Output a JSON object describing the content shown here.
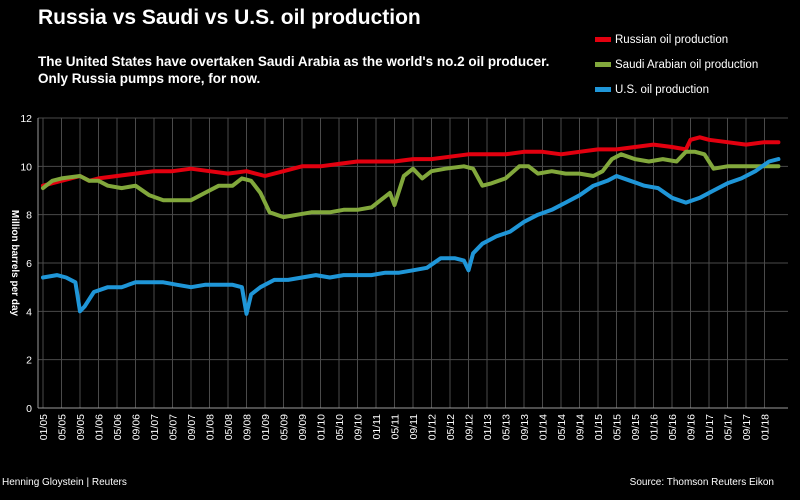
{
  "chart_data": {
    "type": "line",
    "title": "Russia vs Saudi vs U.S. oil production",
    "subtitle": "The United States have overtaken Saudi Arabia as the world's no.2 oil producer. Only Russia pumps more, for now.",
    "ylabel": "Million barrels per day",
    "ylim": [
      0,
      12
    ],
    "yticks": [
      0,
      2,
      4,
      6,
      8,
      10,
      12
    ],
    "xlim": [
      "2005-01",
      "2018-04"
    ],
    "xticks": [
      "01/05",
      "05/05",
      "09/05",
      "01/06",
      "05/06",
      "09/06",
      "01/07",
      "05/07",
      "09/07",
      "01/08",
      "05/08",
      "09/08",
      "01/09",
      "05/09",
      "09/09",
      "01/10",
      "05/10",
      "09/10",
      "01/11",
      "05/11",
      "09/11",
      "01/12",
      "05/12",
      "09/12",
      "01/13",
      "05/13",
      "09/13",
      "01/14",
      "05/14",
      "09/14",
      "01/15",
      "05/15",
      "09/15",
      "01/16",
      "05/16",
      "09/16",
      "01/17",
      "05/17",
      "09/17",
      "01/18"
    ],
    "grid": true,
    "legend": "top-right",
    "series": [
      {
        "name": "Russian oil production",
        "color": "#e3000f",
        "points": [
          [
            "2005-01",
            9.2
          ],
          [
            "2005-05",
            9.4
          ],
          [
            "2005-07",
            9.5
          ],
          [
            "2005-09",
            9.6
          ],
          [
            "2005-11",
            9.4
          ],
          [
            "2006-01",
            9.5
          ],
          [
            "2006-05",
            9.6
          ],
          [
            "2006-09",
            9.7
          ],
          [
            "2007-01",
            9.8
          ],
          [
            "2007-05",
            9.8
          ],
          [
            "2007-09",
            9.9
          ],
          [
            "2008-01",
            9.8
          ],
          [
            "2008-05",
            9.7
          ],
          [
            "2008-09",
            9.8
          ],
          [
            "2009-01",
            9.6
          ],
          [
            "2009-05",
            9.8
          ],
          [
            "2009-09",
            10.0
          ],
          [
            "2010-01",
            10.0
          ],
          [
            "2010-05",
            10.1
          ],
          [
            "2010-09",
            10.2
          ],
          [
            "2011-01",
            10.2
          ],
          [
            "2011-05",
            10.2
          ],
          [
            "2011-09",
            10.3
          ],
          [
            "2012-01",
            10.3
          ],
          [
            "2012-05",
            10.4
          ],
          [
            "2012-09",
            10.5
          ],
          [
            "2013-01",
            10.5
          ],
          [
            "2013-05",
            10.5
          ],
          [
            "2013-09",
            10.6
          ],
          [
            "2014-01",
            10.6
          ],
          [
            "2014-05",
            10.5
          ],
          [
            "2014-09",
            10.6
          ],
          [
            "2015-01",
            10.7
          ],
          [
            "2015-05",
            10.7
          ],
          [
            "2015-09",
            10.8
          ],
          [
            "2016-01",
            10.9
          ],
          [
            "2016-05",
            10.8
          ],
          [
            "2016-08",
            10.7
          ],
          [
            "2016-09",
            11.1
          ],
          [
            "2016-11",
            11.2
          ],
          [
            "2017-01",
            11.1
          ],
          [
            "2017-05",
            11.0
          ],
          [
            "2017-09",
            10.9
          ],
          [
            "2018-01",
            11.0
          ],
          [
            "2018-04",
            11.0
          ]
        ]
      },
      {
        "name": "Saudi Arabian oil production",
        "color": "#82a83c",
        "points": [
          [
            "2005-01",
            9.1
          ],
          [
            "2005-03",
            9.4
          ],
          [
            "2005-05",
            9.5
          ],
          [
            "2005-09",
            9.6
          ],
          [
            "2005-11",
            9.4
          ],
          [
            "2006-01",
            9.4
          ],
          [
            "2006-03",
            9.2
          ],
          [
            "2006-06",
            9.1
          ],
          [
            "2006-09",
            9.2
          ],
          [
            "2006-12",
            8.8
          ],
          [
            "2007-03",
            8.6
          ],
          [
            "2007-06",
            8.6
          ],
          [
            "2007-09",
            8.6
          ],
          [
            "2007-12",
            8.9
          ],
          [
            "2008-03",
            9.2
          ],
          [
            "2008-06",
            9.2
          ],
          [
            "2008-08",
            9.5
          ],
          [
            "2008-10",
            9.4
          ],
          [
            "2008-12",
            8.9
          ],
          [
            "2009-02",
            8.1
          ],
          [
            "2009-05",
            7.9
          ],
          [
            "2009-08",
            8.0
          ],
          [
            "2009-11",
            8.1
          ],
          [
            "2010-03",
            8.1
          ],
          [
            "2010-06",
            8.2
          ],
          [
            "2010-09",
            8.2
          ],
          [
            "2010-12",
            8.3
          ],
          [
            "2011-02",
            8.6
          ],
          [
            "2011-04",
            8.9
          ],
          [
            "2011-05",
            8.4
          ],
          [
            "2011-07",
            9.6
          ],
          [
            "2011-09",
            9.9
          ],
          [
            "2011-11",
            9.5
          ],
          [
            "2012-01",
            9.8
          ],
          [
            "2012-04",
            9.9
          ],
          [
            "2012-08",
            10.0
          ],
          [
            "2012-10",
            9.9
          ],
          [
            "2012-12",
            9.2
          ],
          [
            "2013-02",
            9.3
          ],
          [
            "2013-05",
            9.5
          ],
          [
            "2013-08",
            10.0
          ],
          [
            "2013-10",
            10.0
          ],
          [
            "2013-12",
            9.7
          ],
          [
            "2014-03",
            9.8
          ],
          [
            "2014-06",
            9.7
          ],
          [
            "2014-09",
            9.7
          ],
          [
            "2014-12",
            9.6
          ],
          [
            "2015-02",
            9.8
          ],
          [
            "2015-04",
            10.3
          ],
          [
            "2015-06",
            10.5
          ],
          [
            "2015-09",
            10.3
          ],
          [
            "2015-12",
            10.2
          ],
          [
            "2016-03",
            10.3
          ],
          [
            "2016-06",
            10.2
          ],
          [
            "2016-08",
            10.6
          ],
          [
            "2016-10",
            10.6
          ],
          [
            "2016-12",
            10.5
          ],
          [
            "2017-02",
            9.9
          ],
          [
            "2017-05",
            10.0
          ],
          [
            "2017-09",
            10.0
          ],
          [
            "2017-12",
            10.0
          ],
          [
            "2018-02",
            10.0
          ],
          [
            "2018-04",
            10.0
          ]
        ]
      },
      {
        "name": "U.S. oil production",
        "color": "#1f96d8",
        "points": [
          [
            "2005-01",
            5.4
          ],
          [
            "2005-04",
            5.5
          ],
          [
            "2005-06",
            5.4
          ],
          [
            "2005-08",
            5.2
          ],
          [
            "2005-09",
            4.0
          ],
          [
            "2005-10",
            4.2
          ],
          [
            "2005-12",
            4.8
          ],
          [
            "2006-03",
            5.0
          ],
          [
            "2006-06",
            5.0
          ],
          [
            "2006-09",
            5.2
          ],
          [
            "2006-12",
            5.2
          ],
          [
            "2007-03",
            5.2
          ],
          [
            "2007-06",
            5.1
          ],
          [
            "2007-09",
            5.0
          ],
          [
            "2007-12",
            5.1
          ],
          [
            "2008-03",
            5.1
          ],
          [
            "2008-06",
            5.1
          ],
          [
            "2008-08",
            5.0
          ],
          [
            "2008-09",
            3.9
          ],
          [
            "2008-10",
            4.7
          ],
          [
            "2008-12",
            5.0
          ],
          [
            "2009-03",
            5.3
          ],
          [
            "2009-06",
            5.3
          ],
          [
            "2009-09",
            5.4
          ],
          [
            "2009-12",
            5.5
          ],
          [
            "2010-03",
            5.4
          ],
          [
            "2010-06",
            5.5
          ],
          [
            "2010-09",
            5.5
          ],
          [
            "2010-12",
            5.5
          ],
          [
            "2011-03",
            5.6
          ],
          [
            "2011-06",
            5.6
          ],
          [
            "2011-09",
            5.7
          ],
          [
            "2011-12",
            5.8
          ],
          [
            "2012-03",
            6.2
          ],
          [
            "2012-06",
            6.2
          ],
          [
            "2012-08",
            6.1
          ],
          [
            "2012-09",
            5.7
          ],
          [
            "2012-10",
            6.4
          ],
          [
            "2012-12",
            6.8
          ],
          [
            "2013-03",
            7.1
          ],
          [
            "2013-06",
            7.3
          ],
          [
            "2013-09",
            7.7
          ],
          [
            "2013-12",
            8.0
          ],
          [
            "2014-03",
            8.2
          ],
          [
            "2014-06",
            8.5
          ],
          [
            "2014-09",
            8.8
          ],
          [
            "2014-12",
            9.2
          ],
          [
            "2015-03",
            9.4
          ],
          [
            "2015-05",
            9.6
          ],
          [
            "2015-08",
            9.4
          ],
          [
            "2015-11",
            9.2
          ],
          [
            "2016-02",
            9.1
          ],
          [
            "2016-05",
            8.7
          ],
          [
            "2016-08",
            8.5
          ],
          [
            "2016-11",
            8.7
          ],
          [
            "2017-02",
            9.0
          ],
          [
            "2017-05",
            9.3
          ],
          [
            "2017-08",
            9.5
          ],
          [
            "2017-11",
            9.8
          ],
          [
            "2018-02",
            10.2
          ],
          [
            "2018-04",
            10.3
          ]
        ]
      }
    ]
  },
  "footer": {
    "credit": "Henning Gloystein | Reuters",
    "source": "Source: Thomson Reuters Eikon"
  }
}
